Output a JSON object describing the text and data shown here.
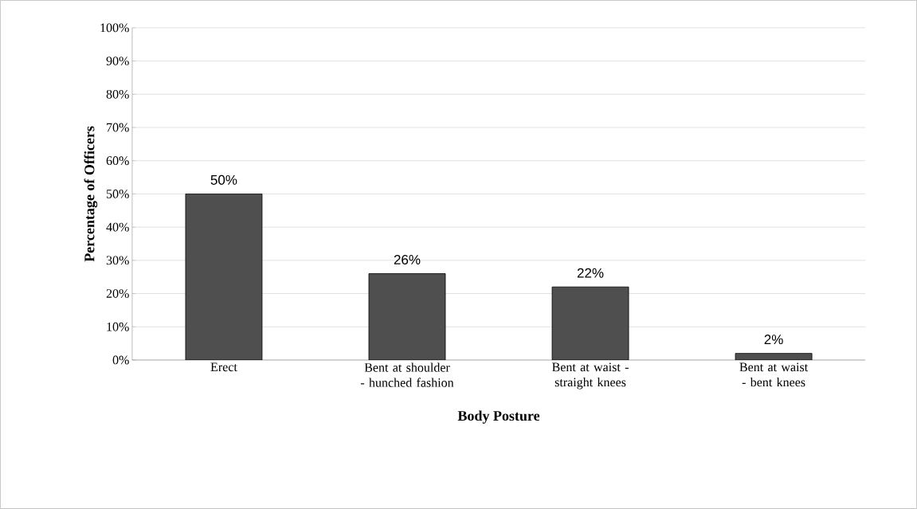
{
  "chart_data": {
    "type": "bar",
    "xlabel": "Body Posture",
    "ylabel": "Percentage of Officers",
    "categories": [
      "Erect",
      "Bent at shoulder - hunched fashion",
      "Bent at waist - straight knees",
      "Bent at waist - bent knees"
    ],
    "values": [
      50,
      26,
      22,
      2
    ],
    "value_labels": [
      "50%",
      "26%",
      "22%",
      "2%"
    ],
    "color": "#4f4f4f",
    "ylim": [
      0,
      100
    ],
    "yticks": [
      {
        "value": 0,
        "label": "0%"
      },
      {
        "value": 10,
        "label": "10%"
      },
      {
        "value": 20,
        "label": "20%"
      },
      {
        "value": 30,
        "label": "30%"
      },
      {
        "value": 40,
        "label": "40%"
      },
      {
        "value": 50,
        "label": "50%"
      },
      {
        "value": 60,
        "label": "60%"
      },
      {
        "value": 70,
        "label": "70%"
      },
      {
        "value": 80,
        "label": "80%"
      },
      {
        "value": 90,
        "label": "90%"
      },
      {
        "value": 100,
        "label": "100%"
      }
    ],
    "grid": "y"
  }
}
